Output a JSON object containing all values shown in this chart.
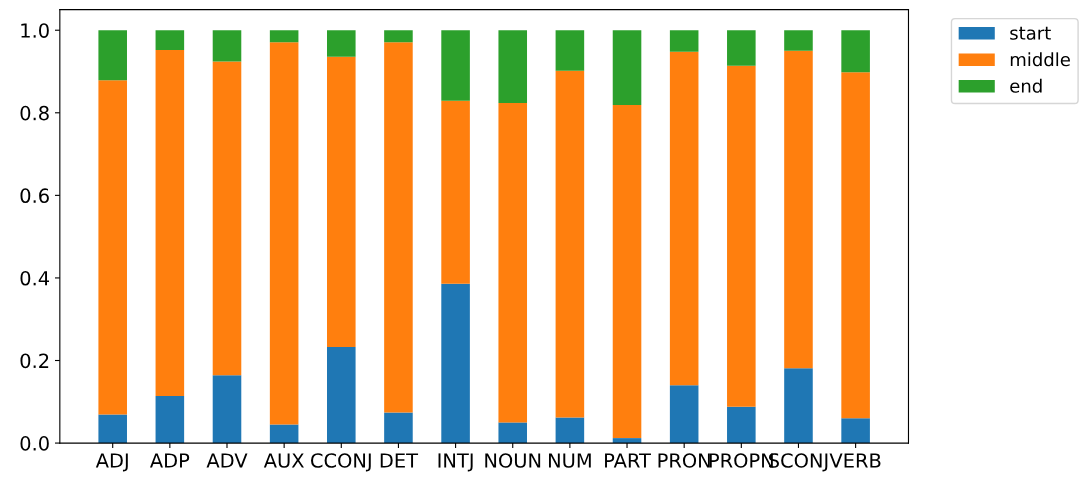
{
  "chart_data": {
    "type": "bar",
    "stacked": true,
    "categories": [
      "ADJ",
      "ADP",
      "ADV",
      "AUX",
      "CCONJ",
      "DET",
      "INTJ",
      "NOUN",
      "NUM",
      "PART",
      "PRON",
      "PROPN",
      "SCONJ",
      "VERB"
    ],
    "series": [
      {
        "name": "start",
        "color": "#1f77b4",
        "values": [
          0.069,
          0.114,
          0.164,
          0.045,
          0.233,
          0.074,
          0.386,
          0.05,
          0.062,
          0.012,
          0.14,
          0.088,
          0.181,
          0.06
        ]
      },
      {
        "name": "middle",
        "color": "#ff7f0e",
        "values": [
          0.81,
          0.838,
          0.76,
          0.926,
          0.703,
          0.897,
          0.443,
          0.774,
          0.84,
          0.807,
          0.808,
          0.826,
          0.769,
          0.838
        ]
      },
      {
        "name": "end",
        "color": "#2ca02c",
        "values": [
          0.121,
          0.048,
          0.076,
          0.029,
          0.064,
          0.029,
          0.171,
          0.176,
          0.098,
          0.181,
          0.052,
          0.086,
          0.05,
          0.102
        ]
      }
    ],
    "ylim": [
      0,
      1.05
    ],
    "yticks": [
      {
        "value": 0,
        "label": "0.0"
      },
      {
        "value": 0.2,
        "label": "0.2"
      },
      {
        "value": 0.4,
        "label": "0.4"
      },
      {
        "value": 0.6,
        "label": "0.6"
      },
      {
        "value": 0.8,
        "label": "0.8"
      },
      {
        "value": 1,
        "label": "1.0"
      }
    ],
    "legend": "top right",
    "grid": false
  }
}
